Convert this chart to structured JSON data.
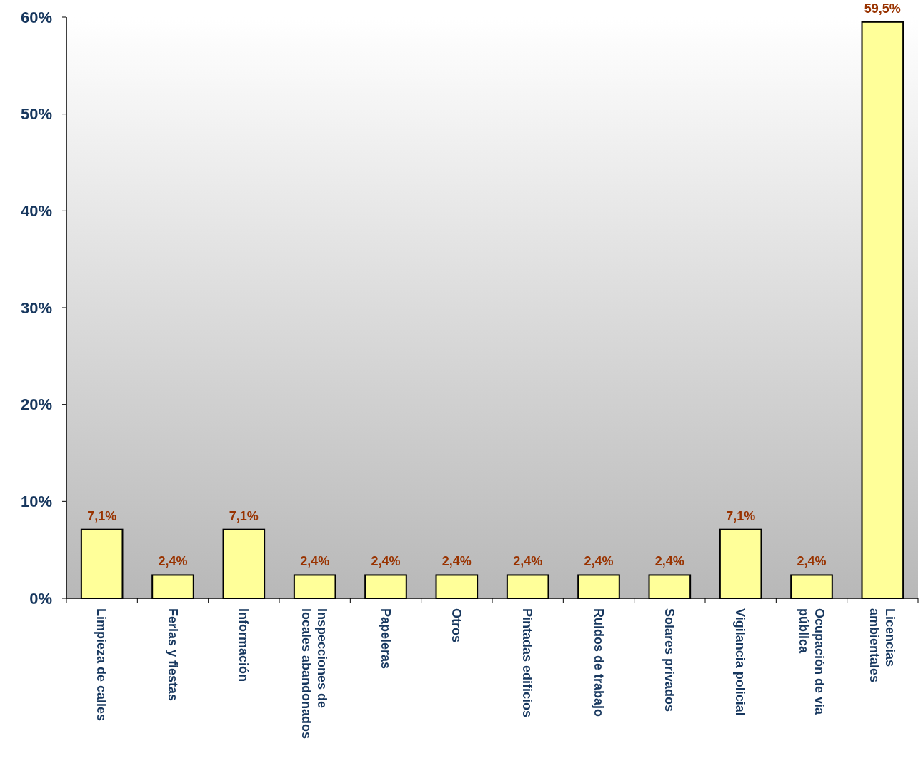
{
  "chart_data": {
    "type": "bar",
    "categories": [
      "Limpieza de calles",
      "Ferias y fiestas",
      "Información",
      "Inspecciones de\nlocales abandonados",
      "Papeleras",
      "Otros",
      "Pintadas edificios",
      "Ruidos de trabajo",
      "Solares privados",
      "Vigilancia policial",
      "Ocupación de vía\npública",
      "Licencias\nambientales"
    ],
    "values": [
      7.1,
      2.4,
      7.1,
      2.4,
      2.4,
      2.4,
      2.4,
      2.4,
      2.4,
      7.1,
      2.4,
      59.5
    ],
    "value_labels": [
      "7,1%",
      "2,4%",
      "7,1%",
      "2,4%",
      "2,4%",
      "2,4%",
      "2,4%",
      "2,4%",
      "2,4%",
      "7,1%",
      "2,4%",
      "59,5%"
    ],
    "color": "#ffff99",
    "ylim": [
      0,
      60
    ],
    "yticks": [
      {
        "value": 0,
        "label": "0%"
      },
      {
        "value": 10,
        "label": "10%"
      },
      {
        "value": 20,
        "label": "20%"
      },
      {
        "value": 30,
        "label": "30%"
      },
      {
        "value": 40,
        "label": "40%"
      },
      {
        "value": 50,
        "label": "50%"
      },
      {
        "value": 60,
        "label": "60%"
      }
    ],
    "grid": false
  }
}
